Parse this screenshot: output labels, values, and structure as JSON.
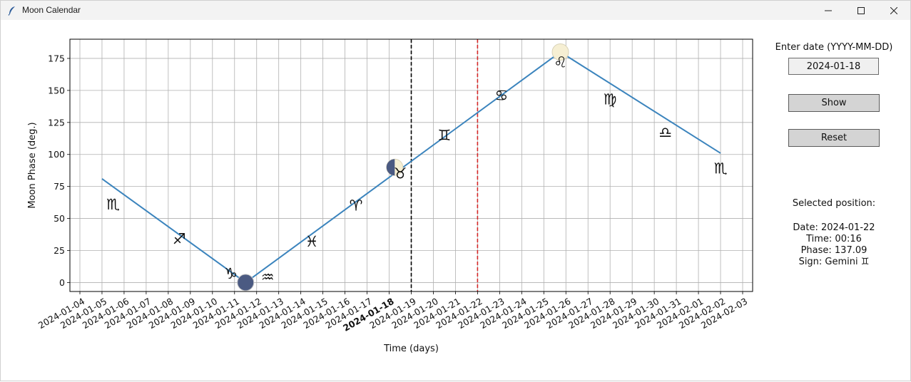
{
  "window": {
    "title": "Moon Calendar"
  },
  "controls": {
    "date_prompt": "Enter date (YYYY-MM-DD)",
    "date_value": "2024-01-18",
    "show_label": "Show",
    "reset_label": "Reset"
  },
  "selection": {
    "heading": "Selected position:",
    "date_line": "Date: 2024-01-22",
    "time_line": "Time: 00:16",
    "phase_line": "Phase: 137.09",
    "sign_line": "Sign: Gemini ♊"
  },
  "colors": {
    "line": "#3b84bd",
    "grid": "#b0b0b0",
    "moon_dark": "#4b5a82",
    "moon_light": "#f6efd3",
    "black_marker": "#000000",
    "red_marker": "#d62728"
  },
  "chart_data": {
    "type": "line",
    "title": "",
    "xlabel": "Time (days)",
    "ylabel": "Moon Phase (deg.)",
    "xlim": [
      "2024-01-04",
      "2024-02-03"
    ],
    "ylim": [
      -7,
      190
    ],
    "yticks": [
      0,
      25,
      50,
      75,
      100,
      125,
      150,
      175
    ],
    "categories": [
      "2024-01-04",
      "2024-01-05",
      "2024-01-06",
      "2024-01-07",
      "2024-01-08",
      "2024-01-09",
      "2024-01-10",
      "2024-01-11",
      "2024-01-12",
      "2024-01-13",
      "2024-01-14",
      "2024-01-15",
      "2024-01-16",
      "2024-01-17",
      "2024-01-18",
      "2024-01-19",
      "2024-01-20",
      "2024-01-21",
      "2024-01-22",
      "2024-01-23",
      "2024-01-24",
      "2024-01-25",
      "2024-01-26",
      "2024-01-27",
      "2024-01-28",
      "2024-01-29",
      "2024-01-30",
      "2024-01-31",
      "2024-02-01",
      "2024-02-02",
      "2024-02-03"
    ],
    "highlighted_tick": "2024-01-18",
    "grid": true,
    "series": [
      {
        "x": [
          "2024-01-05",
          "2024-01-11 12:00",
          "2024-01-25 18:00",
          "2024-02-02"
        ],
        "values": [
          81,
          0,
          180,
          101
        ]
      }
    ],
    "moon_markers": [
      {
        "date": "2024-01-11 12:00",
        "phase": 0,
        "kind": "new"
      },
      {
        "date": "2024-01-18 06:00",
        "phase": 90,
        "kind": "half"
      },
      {
        "date": "2024-01-25 18:00",
        "phase": 180,
        "kind": "full"
      }
    ],
    "vertical_lines": [
      {
        "date": "2024-01-19",
        "color": "black"
      },
      {
        "date": "2024-01-22",
        "color": "red"
      }
    ],
    "zodiac_labels": [
      {
        "glyph": "♏",
        "date": "2024-01-05 12:00",
        "phase": 61
      },
      {
        "glyph": "♐",
        "date": "2024-01-08 12:00",
        "phase": 34
      },
      {
        "glyph": "♑",
        "date": "2024-01-10 20:00",
        "phase": 7
      },
      {
        "glyph": "♒",
        "date": "2024-01-12 12:00",
        "phase": 4
      },
      {
        "glyph": "♓",
        "date": "2024-01-14 12:00",
        "phase": 32
      },
      {
        "glyph": "♈",
        "date": "2024-01-16 12:00",
        "phase": 60
      },
      {
        "glyph": "♉",
        "date": "2024-01-18 12:00",
        "phase": 85
      },
      {
        "glyph": "♊",
        "date": "2024-01-20 12:00",
        "phase": 115
      },
      {
        "glyph": "♋",
        "date": "2024-01-23 02:00",
        "phase": 146
      },
      {
        "glyph": "♌",
        "date": "2024-01-25 18:00",
        "phase": 172
      },
      {
        "glyph": "♍",
        "date": "2024-01-28 00:00",
        "phase": 143
      },
      {
        "glyph": "♎",
        "date": "2024-01-30 12:00",
        "phase": 117
      },
      {
        "glyph": "♏",
        "date": "2024-02-02 00:00",
        "phase": 89
      }
    ]
  }
}
